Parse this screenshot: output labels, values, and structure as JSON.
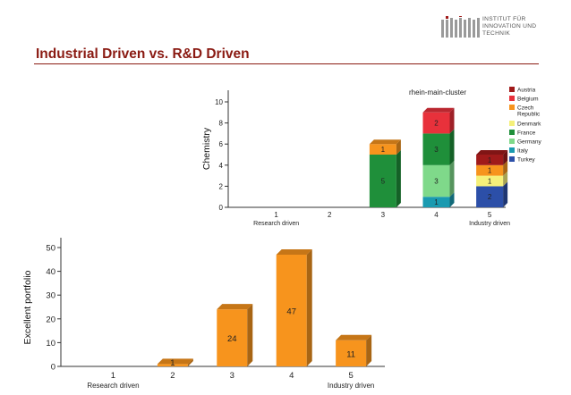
{
  "slide": {
    "title": "Industrial Driven vs. R&D Driven",
    "logo": {
      "lines": [
        "INSTITUT FÜR",
        "INNOVATION UND",
        "TECHNIK"
      ],
      "icon": "iit-logo-icon"
    }
  },
  "colors": {
    "title": "#8a1a12",
    "bar_orange": "#f7941d",
    "Austria": "#a01a1a",
    "Belgium": "#e8313b",
    "Czech Republic": "#f7941d",
    "Denmark": "#f5f07a",
    "France": "#1f8f3a",
    "Germany": "#7fd98a",
    "Italy": "#1a9ab0",
    "Turkey": "#2c4fa8"
  },
  "chart_data": [
    {
      "type": "bar",
      "stacked": true,
      "title": "rhein-main-cluster",
      "ylabel": "Chemistry",
      "xlabel": "",
      "categories": [
        "1",
        "2",
        "3",
        "4",
        "5"
      ],
      "category_sublabels": [
        "Research driven",
        "",
        "",
        "",
        "Industry driven"
      ],
      "ylim": [
        0,
        10
      ],
      "yticks": [
        0,
        2,
        4,
        6,
        8,
        10
      ],
      "legend_position": "right",
      "series": [
        {
          "name": "Austria",
          "values": [
            0,
            0,
            0,
            0,
            1
          ]
        },
        {
          "name": "Belgium",
          "values": [
            0,
            0,
            0,
            2,
            0
          ]
        },
        {
          "name": "Czech Republic",
          "values": [
            0,
            0,
            1,
            0,
            1
          ]
        },
        {
          "name": "Denmark",
          "values": [
            0,
            0,
            0,
            0,
            1
          ]
        },
        {
          "name": "France",
          "values": [
            0,
            0,
            5,
            3,
            0
          ]
        },
        {
          "name": "Germany",
          "values": [
            0,
            0,
            0,
            3,
            0
          ]
        },
        {
          "name": "Italy",
          "values": [
            0,
            0,
            0,
            1,
            0
          ]
        },
        {
          "name": "Turkey",
          "values": [
            0,
            0,
            0,
            0,
            2
          ]
        }
      ],
      "legend_labels": [
        "Austria",
        "Belgium",
        "Czech Republic",
        "Denmark",
        "France",
        "Germany",
        "Italy",
        "Turkey"
      ]
    },
    {
      "type": "bar",
      "title": "",
      "ylabel": "Excellent portfolio",
      "xlabel": "",
      "categories": [
        "1",
        "2",
        "3",
        "4",
        "5"
      ],
      "category_sublabels": [
        "Research driven",
        "",
        "",
        "",
        "Industry driven"
      ],
      "values": [
        0,
        1,
        24,
        47,
        11
      ],
      "value_labels": [
        "",
        "1",
        "24",
        "47",
        "11"
      ],
      "ylim": [
        0,
        50
      ],
      "yticks": [
        0,
        10,
        20,
        30,
        40,
        50
      ]
    }
  ]
}
